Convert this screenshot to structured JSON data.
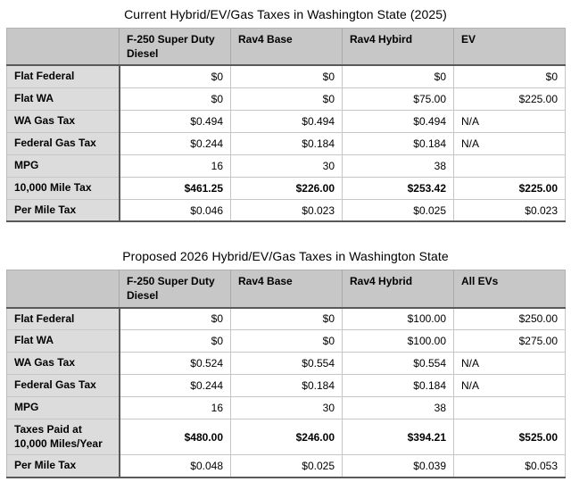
{
  "colors": {
    "page_background": "#ffffff",
    "header_row_bg": "#c7c7c7",
    "label_column_bg": "#dcdcdc",
    "cell_bg": "#ffffff",
    "grid_light": "#c6c6c6",
    "grid_dark": "#595959",
    "text": "#000000"
  },
  "chart_data": [
    {
      "type": "table",
      "title": "Current Hybrid/EV/Gas Taxes in Washington State (2025)",
      "columns": [
        "",
        "F-250 Super Duty Diesel",
        "Rav4 Base",
        "Rav4 Hybird",
        "EV"
      ],
      "rows": [
        {
          "label": "Flat Federal",
          "values": [
            "$0",
            "$0",
            "$0",
            "$0"
          ],
          "bold": false
        },
        {
          "label": "Flat WA",
          "values": [
            "$0",
            "$0",
            "$75.00",
            "$225.00"
          ],
          "bold": false
        },
        {
          "label": "WA Gas Tax",
          "values": [
            "$0.494",
            "$0.494",
            "$0.494",
            "N/A"
          ],
          "bold": false
        },
        {
          "label": "Federal Gas Tax",
          "values": [
            "$0.244",
            "$0.184",
            "$0.184",
            "N/A"
          ],
          "bold": false
        },
        {
          "label": "MPG",
          "values": [
            "16",
            "30",
            "38",
            ""
          ],
          "bold": false
        },
        {
          "label": "10,000 Mile Tax",
          "values": [
            "$461.25",
            "$226.00",
            "$253.42",
            "$225.00"
          ],
          "bold": true
        },
        {
          "label": "Per Mile Tax",
          "values": [
            "$0.046",
            "$0.023",
            "$0.025",
            "$0.023"
          ],
          "bold": false
        }
      ]
    },
    {
      "type": "table",
      "title": "Proposed 2026 Hybrid/EV/Gas Taxes in Washington State",
      "columns": [
        "",
        "F-250 Super Duty Diesel",
        "Rav4 Base",
        "Rav4 Hybrid",
        "All EVs"
      ],
      "rows": [
        {
          "label": "Flat Federal",
          "values": [
            "$0",
            "$0",
            "$100.00",
            "$250.00"
          ],
          "bold": false
        },
        {
          "label": "Flat WA",
          "values": [
            "$0",
            "$0",
            "$100.00",
            "$275.00"
          ],
          "bold": false
        },
        {
          "label": "WA Gas Tax",
          "values": [
            "$0.524",
            "$0.554",
            "$0.554",
            "N/A"
          ],
          "bold": false
        },
        {
          "label": "Federal Gas Tax",
          "values": [
            "$0.244",
            "$0.184",
            "$0.184",
            "N/A"
          ],
          "bold": false
        },
        {
          "label": "MPG",
          "values": [
            "16",
            "30",
            "38",
            ""
          ],
          "bold": false
        },
        {
          "label": "Taxes Paid at 10,000 Miles/Year",
          "values": [
            "$480.00",
            "$246.00",
            "$394.21",
            "$525.00"
          ],
          "bold": true
        },
        {
          "label": "Per Mile Tax",
          "values": [
            "$0.048",
            "$0.025",
            "$0.039",
            "$0.053"
          ],
          "bold": false
        }
      ]
    }
  ]
}
